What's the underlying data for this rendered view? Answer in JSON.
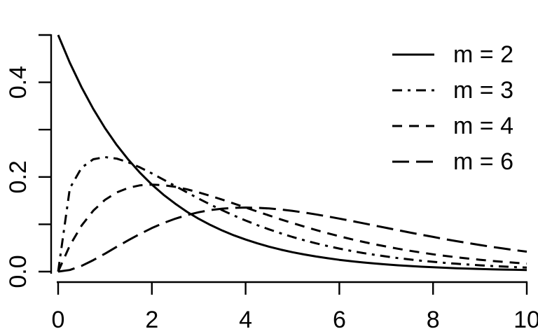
{
  "figure": {
    "background": "#ffffff",
    "ink_color": "#000000"
  },
  "chart_data": {
    "type": "line",
    "title": "",
    "xlabel": "",
    "ylabel": "",
    "xlim": [
      0,
      10
    ],
    "ylim": [
      0,
      0.5
    ],
    "grid": false,
    "legend_position": "top-right",
    "x_ticks": [
      0,
      2,
      4,
      6,
      8,
      10
    ],
    "x_tick_labels": [
      "0",
      "2",
      "4",
      "6",
      "8",
      "10"
    ],
    "y_ticks": [
      0,
      0.1,
      0.2,
      0.3,
      0.4,
      0.5
    ],
    "y_tick_labels": [
      "0.0",
      "",
      "0.2",
      "",
      "0.4",
      ""
    ],
    "x": [
      0,
      0.25,
      0.5,
      0.75,
      1,
      1.25,
      1.5,
      1.75,
      2,
      2.25,
      2.5,
      2.75,
      3,
      3.25,
      3.5,
      3.75,
      4,
      4.25,
      4.5,
      4.75,
      5,
      5.25,
      5.5,
      5.75,
      6,
      6.25,
      6.5,
      6.75,
      7,
      7.25,
      7.5,
      7.75,
      8,
      8.25,
      8.5,
      8.75,
      9,
      9.25,
      9.5,
      9.75,
      10
    ],
    "series": [
      {
        "name": "m = 2",
        "m": 2,
        "linetype": "solid",
        "values": [
          0.5,
          0.4412,
          0.3894,
          0.3437,
          0.3033,
          0.2676,
          0.2362,
          0.2084,
          0.1839,
          0.1623,
          0.1433,
          0.1264,
          0.1116,
          0.0985,
          0.0869,
          0.0767,
          0.0677,
          0.0597,
          0.0527,
          0.0465,
          0.041,
          0.0362,
          0.032,
          0.0282,
          0.0249,
          0.022,
          0.0194,
          0.0171,
          0.0151,
          0.0133,
          0.0118,
          0.0104,
          0.0092,
          0.0081,
          0.0071,
          0.0063,
          0.0056,
          0.0049,
          0.0043,
          0.0038,
          0.0034
        ]
      },
      {
        "name": "m = 3",
        "m": 3,
        "linetype": "dotdash",
        "values": [
          0,
          0.176,
          0.2197,
          0.2375,
          0.242,
          0.2387,
          0.2308,
          0.22,
          0.2076,
          0.1943,
          0.1807,
          0.1673,
          0.1542,
          0.1416,
          0.1297,
          0.1185,
          0.108,
          0.0982,
          0.0892,
          0.0809,
          0.0732,
          0.0662,
          0.0598,
          0.054,
          0.0487,
          0.0438,
          0.0394,
          0.0355,
          0.0319,
          0.0286,
          0.0257,
          0.023,
          0.0207,
          0.0185,
          0.0166,
          0.0149,
          0.0133,
          0.0119,
          0.0106,
          0.0095,
          0.0085
        ]
      },
      {
        "name": "m = 4",
        "m": 4,
        "linetype": "dashed",
        "values": [
          0,
          0.0552,
          0.0974,
          0.1289,
          0.1516,
          0.1673,
          0.1771,
          0.1824,
          0.1839,
          0.1826,
          0.1791,
          0.1738,
          0.1673,
          0.16,
          0.152,
          0.1438,
          0.1353,
          0.1269,
          0.1186,
          0.1104,
          0.1026,
          0.0951,
          0.0879,
          0.0811,
          0.0747,
          0.0687,
          0.063,
          0.0577,
          0.0529,
          0.0483,
          0.0441,
          0.0402,
          0.0366,
          0.0333,
          0.0303,
          0.0275,
          0.025,
          0.0227,
          0.0205,
          0.0186,
          0.0169
        ]
      },
      {
        "name": "m = 6",
        "m": 6,
        "linetype": "longdash",
        "values": [
          0,
          0.0034,
          0.0122,
          0.0242,
          0.0379,
          0.0523,
          0.0664,
          0.0798,
          0.092,
          0.1027,
          0.1119,
          0.1195,
          0.1255,
          0.13,
          0.133,
          0.1348,
          0.1353,
          0.1348,
          0.1334,
          0.1312,
          0.1283,
          0.1248,
          0.1209,
          0.1166,
          0.112,
          0.1073,
          0.1024,
          0.0974,
          0.0925,
          0.0876,
          0.0827,
          0.0779,
          0.0733,
          0.0687,
          0.0644,
          0.0602,
          0.0562,
          0.0524,
          0.0488,
          0.0453,
          0.0421
        ]
      }
    ]
  }
}
